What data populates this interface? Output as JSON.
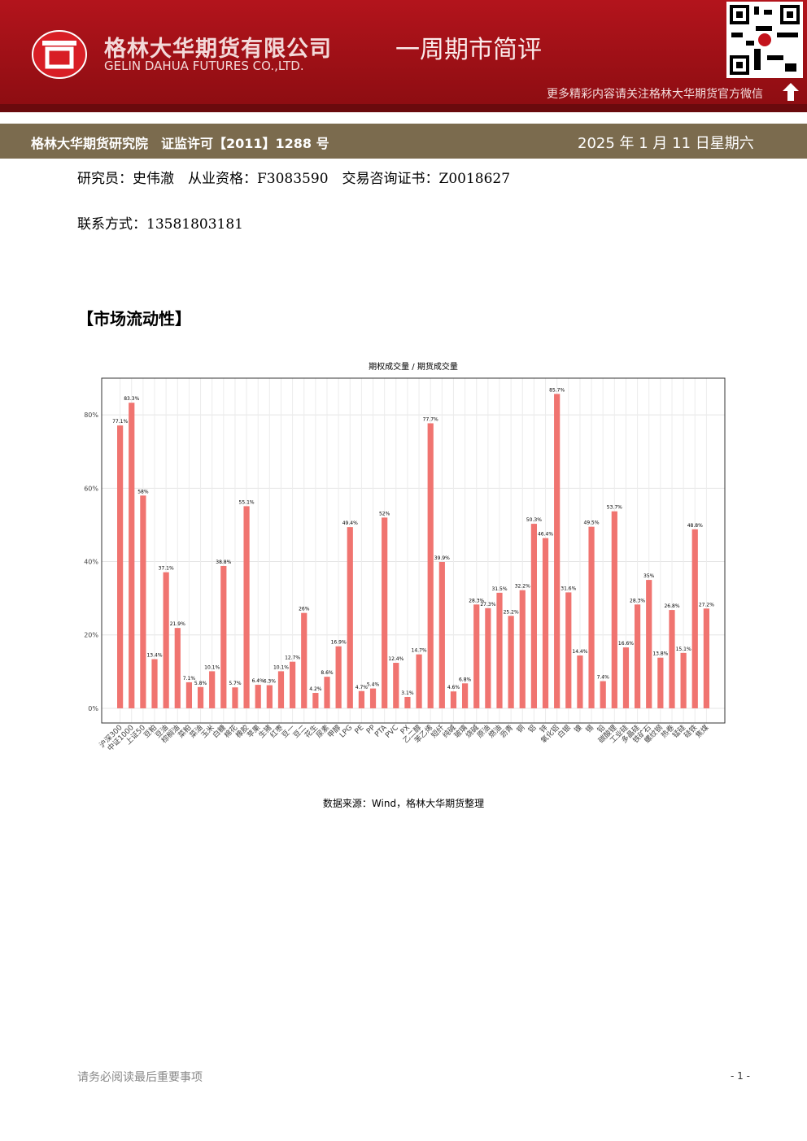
{
  "header": {
    "company": "格林大华期货有限公司",
    "company_en": "GELIN DAHUA FUTURES CO.,LTD.",
    "report": "一周期市简评",
    "wechat": "更多精彩内容请关注格林大华期货官方微信",
    "institute": "格林大华期货研究院　证监许可【2011】1288 号",
    "date": "2025 年 1 月 11 日星期六"
  },
  "info": {
    "researcher": "研究员：史伟澈　从业资格：F3083590　交易咨询证书：Z0018627",
    "contact": "联系方式：13581803181"
  },
  "section": "【市场流动性】",
  "chart_data": {
    "type": "bar",
    "title": "期权成交量 / 期货成交量",
    "color": "#f07470",
    "categories": [
      "沪深300",
      "中证1000",
      "上证50",
      "豆粕",
      "豆油",
      "棕榈油",
      "菜粕",
      "菜油",
      "玉米",
      "白糖",
      "棉花",
      "橡胶",
      "苹果",
      "生猪",
      "红枣",
      "豆一",
      "豆二",
      "花生",
      "尿素",
      "甲醇",
      "LPG",
      "PE",
      "PP",
      "PTA",
      "PVC",
      "PX",
      "乙二醇",
      "苯乙烯",
      "短纤",
      "纯碱",
      "玻璃",
      "烧碱",
      "原油",
      "燃油",
      "沥青",
      "铜",
      "铝",
      "锌",
      "氧化铝",
      "白银",
      "镍",
      "锡",
      "铅",
      "碳酸锂",
      "工业硅",
      "多晶硅",
      "铁矿石",
      "螺纹钢",
      "热卷",
      "锰硅",
      "硅铁",
      "焦煤"
    ],
    "values": [
      77.1,
      83.3,
      58,
      13.4,
      37.1,
      21.9,
      7.1,
      5.8,
      10.1,
      38.8,
      5.7,
      55.1,
      6.4,
      6.3,
      10.1,
      12.7,
      26,
      4.2,
      8.6,
      16.9,
      49.4,
      4.7,
      5.4,
      52,
      12.4,
      3.1,
      14.7,
      77.7,
      39.9,
      4.6,
      6.8,
      28.3,
      27.3,
      31.5,
      25.2,
      32.2,
      50.3,
      46.4,
      85.7,
      31.6,
      14.4,
      49.5,
      7.4,
      53.7,
      16.6,
      28.3,
      35,
      13.8,
      26.8,
      15.1,
      48.8,
      27.2
    ],
    "value_labels": [
      "77.1%",
      "83.3%",
      "58%",
      "13.4%",
      "37.1%",
      "21.9%",
      "7.1%",
      "5.8%",
      "10.1%",
      "38.8%",
      "5.7%",
      "55.1%",
      "6.4%",
      "6.3%",
      "10.1%",
      "12.7%",
      "26%",
      "4.2%",
      "8.6%",
      "16.9%",
      "49.4%",
      "4.7%",
      "5.4%",
      "52%",
      "12.4%",
      "3.1%",
      "14.7%",
      "77.7%",
      "39.9%",
      "4.6%",
      "6.8%",
      "28.3%",
      "27.3%",
      "31.5%",
      "25.2%",
      "32.2%",
      "50.3%",
      "46.4%",
      "85.7%",
      "31.6%",
      "14.4%",
      "49.5%",
      "7.4%",
      "53.7%",
      "16.6%",
      "28.3%",
      "35%",
      "13.8%",
      "26.8%",
      "15.1%",
      "48.8%",
      "27.2%"
    ],
    "ylim": [
      -4,
      90
    ],
    "yticks": [
      {
        "value": 0,
        "label": "0%"
      },
      {
        "value": 20,
        "label": "20%"
      },
      {
        "value": 40,
        "label": "40%"
      },
      {
        "value": 60,
        "label": "60%"
      },
      {
        "value": 80,
        "label": "80%"
      }
    ],
    "grid": true
  },
  "source": "数据来源：Wind，格林大华期货整理",
  "footer": {
    "notice": "请务必阅读最后重要事项",
    "page": "- 1 -"
  }
}
